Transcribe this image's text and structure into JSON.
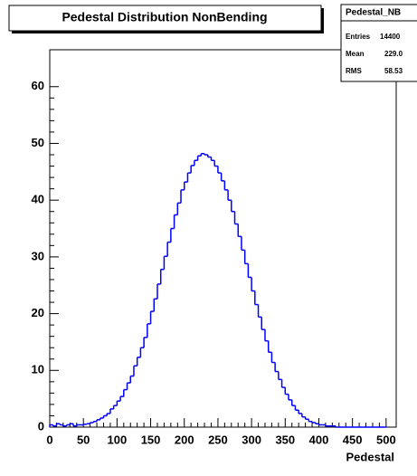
{
  "chart_data": {
    "type": "histogram",
    "title": "Pedestal Distribution NonBending",
    "x_label": "Pedestal",
    "stats": {
      "name": "Pedestal_NB",
      "rows": [
        [
          "Entries",
          "14400"
        ],
        [
          "Mean",
          "229.0"
        ],
        [
          "RMS",
          "58.53"
        ]
      ]
    },
    "color": "#0000ff",
    "bins": [
      0,
      5,
      10,
      15,
      20,
      25,
      30,
      35,
      40,
      45,
      50,
      55,
      60,
      65,
      70,
      75,
      80,
      85,
      90,
      95,
      100,
      105,
      110,
      115,
      120,
      125,
      130,
      135,
      140,
      145,
      150,
      155,
      160,
      165,
      170,
      175,
      180,
      185,
      190,
      195,
      200,
      205,
      210,
      215,
      220,
      225,
      230,
      235,
      240,
      245,
      250,
      255,
      260,
      265,
      270,
      275,
      280,
      285,
      290,
      295,
      300,
      305,
      310,
      315,
      320,
      325,
      330,
      335,
      340,
      345,
      350,
      355,
      360,
      365,
      370,
      375,
      380,
      385,
      390,
      395,
      400,
      405,
      410,
      415,
      420,
      425,
      430,
      435,
      440,
      445,
      450,
      455,
      460,
      465,
      470,
      475,
      480,
      485,
      490,
      495,
      500
    ],
    "values": [
      0.4,
      0.2,
      0.6,
      0.4,
      0.2,
      0.4,
      0.6,
      0.2,
      0.4,
      0.4,
      0.5,
      0.6,
      0.8,
      1.0,
      1.3,
      1.6,
      2.0,
      2.4,
      3.2,
      3.8,
      4.6,
      5.4,
      6.6,
      7.8,
      9.0,
      10.8,
      12.3,
      14.0,
      15.8,
      18.2,
      20.4,
      22.6,
      25.2,
      27.8,
      30.1,
      32.6,
      35.0,
      37.4,
      39.5,
      41.8,
      43.2,
      44.8,
      46.1,
      47.0,
      47.8,
      48.2,
      48.0,
      47.6,
      47.0,
      46.0,
      44.8,
      43.4,
      41.8,
      40.0,
      38.0,
      35.8,
      33.6,
      31.2,
      28.8,
      26.4,
      24.0,
      21.6,
      19.4,
      17.2,
      15.2,
      13.2,
      11.4,
      9.8,
      8.4,
      7.0,
      5.8,
      4.8,
      3.8,
      3.0,
      2.4,
      1.8,
      1.4,
      1.0,
      0.8,
      0.6,
      0.4,
      0.4,
      0.2,
      0.2,
      0.2,
      0,
      0,
      0,
      0,
      0,
      0,
      0,
      0,
      0,
      0,
      0,
      0,
      0,
      0,
      0
    ],
    "xlim": [
      0,
      515
    ],
    "ylim": [
      0,
      66.5
    ],
    "xticks": [
      0,
      50,
      100,
      150,
      200,
      250,
      300,
      350,
      400,
      450,
      500
    ],
    "yticks": [
      0,
      10,
      20,
      30,
      40,
      50,
      60
    ]
  }
}
